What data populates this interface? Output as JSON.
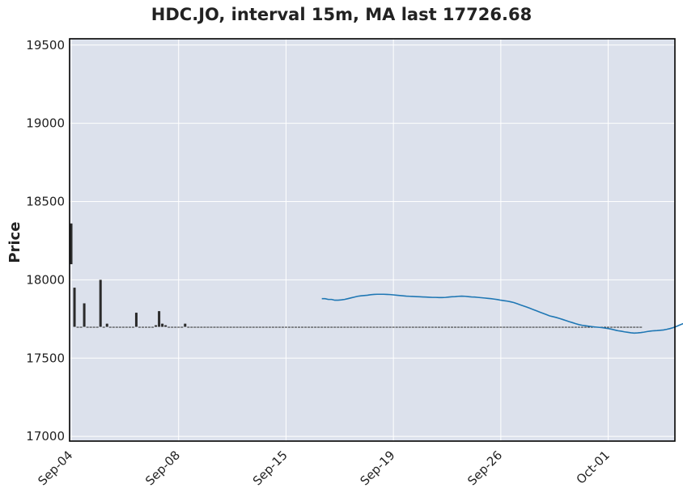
{
  "title": "HDC.JO, interval 15m, MA last 17726.68",
  "chart_data": {
    "type": "candlestick",
    "title": "HDC.JO, interval 15m, MA last 17726.68",
    "ylabel": "Price",
    "xlabel": "",
    "ylim": [
      16970,
      19540
    ],
    "yticks": [
      17000,
      17500,
      18000,
      18500,
      19000,
      19500
    ],
    "ytick_labels": [
      "17000",
      "17500",
      "18000",
      "18500",
      "19000",
      "19500"
    ],
    "xticks": [
      {
        "label": "Sep-04",
        "index": 0
      },
      {
        "label": "Sep-08",
        "index": 33
      },
      {
        "label": "Sep-15",
        "index": 66
      },
      {
        "label": "Sep-19",
        "index": 99
      },
      {
        "label": "Sep-26",
        "index": 132
      },
      {
        "label": "Oct-01",
        "index": 165
      }
    ],
    "bar_count": 186,
    "grid": true,
    "colors": {
      "candle": "#2b2b2b",
      "ma_line": "#1f77b4",
      "axes_bg": "#dce1ec",
      "grid": "#ffffff"
    },
    "candles": [
      [
        18360,
        18360,
        18100,
        18100
      ],
      [
        17950,
        17950,
        17700,
        17700
      ],
      [
        17700,
        17700,
        17700,
        17700
      ],
      [
        17700,
        17700,
        17700,
        17700
      ],
      [
        17850,
        17850,
        17700,
        17700
      ],
      [
        17700,
        17700,
        17700,
        17700
      ],
      [
        17700,
        17700,
        17700,
        17700
      ],
      [
        17700,
        17700,
        17700,
        17700
      ],
      [
        17700,
        17700,
        17700,
        17700
      ],
      [
        18000,
        18000,
        17700,
        17700
      ],
      [
        17700,
        17700,
        17700,
        17700
      ],
      [
        17720,
        17720,
        17700,
        17700
      ],
      [
        17700,
        17700,
        17700,
        17700
      ],
      [
        17700,
        17700,
        17700,
        17700
      ],
      [
        17700,
        17700,
        17700,
        17700
      ],
      [
        17700,
        17700,
        17700,
        17700
      ],
      [
        17700,
        17700,
        17700,
        17700
      ],
      [
        17700,
        17700,
        17700,
        17700
      ],
      [
        17700,
        17700,
        17700,
        17700
      ],
      [
        17700,
        17700,
        17700,
        17700
      ],
      [
        17790,
        17790,
        17700,
        17700
      ],
      [
        17700,
        17700,
        17700,
        17700
      ],
      [
        17700,
        17700,
        17700,
        17700
      ],
      [
        17700,
        17700,
        17700,
        17700
      ],
      [
        17700,
        17700,
        17700,
        17700
      ],
      [
        17700,
        17700,
        17700,
        17700
      ],
      [
        17710,
        17710,
        17700,
        17700
      ],
      [
        17800,
        17800,
        17700,
        17700
      ],
      [
        17720,
        17720,
        17700,
        17700
      ],
      [
        17710,
        17710,
        17700,
        17700
      ],
      [
        17700,
        17700,
        17700,
        17700
      ],
      [
        17700,
        17700,
        17700,
        17700
      ],
      [
        17700,
        17700,
        17700,
        17700
      ],
      [
        17700,
        17700,
        17700,
        17700
      ],
      [
        17700,
        17700,
        17700,
        17700
      ],
      [
        17720,
        17720,
        17700,
        17700
      ],
      [
        17700,
        17700,
        17700,
        17700
      ],
      [
        17700,
        17700,
        17700,
        17700
      ],
      [
        17700,
        17700,
        17700,
        17700
      ],
      [
        17700,
        17700,
        17700,
        17700
      ],
      [
        17700,
        17700,
        17700,
        17700
      ],
      [
        17700,
        17700,
        17700,
        17700
      ],
      [
        17700,
        17700,
        17700,
        17700
      ],
      [
        17700,
        17700,
        17700,
        17700
      ],
      [
        17700,
        17700,
        17700,
        17700
      ],
      [
        17700,
        17700,
        17700,
        17700
      ],
      [
        17700,
        17700,
        17700,
        17700
      ],
      [
        17700,
        17700,
        17700,
        17700
      ],
      [
        17700,
        17700,
        17700,
        17700
      ],
      [
        17700,
        17700,
        17700,
        17700
      ],
      [
        17700,
        17700,
        17700,
        17700
      ],
      [
        17700,
        17700,
        17700,
        17700
      ],
      [
        17700,
        17700,
        17700,
        17700
      ],
      [
        17700,
        17700,
        17700,
        17700
      ],
      [
        17700,
        17700,
        17700,
        17700
      ],
      [
        17700,
        17700,
        17700,
        17700
      ],
      [
        17700,
        17700,
        17700,
        17700
      ],
      [
        17700,
        17700,
        17700,
        17700
      ],
      [
        17700,
        17700,
        17700,
        17700
      ],
      [
        17700,
        17700,
        17700,
        17700
      ],
      [
        17700,
        17700,
        17700,
        17700
      ],
      [
        17700,
        17700,
        17700,
        17700
      ],
      [
        17700,
        17700,
        17700,
        17700
      ],
      [
        17700,
        17700,
        17700,
        17700
      ],
      [
        17700,
        17700,
        17700,
        17700
      ],
      [
        17700,
        17700,
        17700,
        17700
      ],
      [
        17700,
        17700,
        17700,
        17700
      ],
      [
        17700,
        17700,
        17700,
        17700
      ],
      [
        17700,
        17700,
        17700,
        17700
      ],
      [
        17700,
        17700,
        17700,
        17700
      ],
      [
        17700,
        17700,
        17700,
        17700
      ],
      [
        17700,
        17700,
        17700,
        17700
      ],
      [
        17700,
        17700,
        17700,
        17700
      ],
      [
        17700,
        17700,
        17700,
        17700
      ],
      [
        17700,
        17700,
        17700,
        17700
      ],
      [
        17700,
        17700,
        17700,
        17700
      ],
      [
        17700,
        17700,
        17700,
        17700
      ],
      [
        17700,
        17700,
        17700,
        17700
      ],
      [
        17700,
        17700,
        17700,
        17700
      ],
      [
        17700,
        17700,
        17700,
        17700
      ],
      [
        17700,
        17700,
        17700,
        17700
      ],
      [
        17700,
        17700,
        17700,
        17700
      ],
      [
        17700,
        17700,
        17700,
        17700
      ],
      [
        17700,
        17700,
        17700,
        17700
      ],
      [
        17700,
        17700,
        17700,
        17700
      ],
      [
        17700,
        17700,
        17700,
        17700
      ],
      [
        17700,
        17700,
        17700,
        17700
      ],
      [
        17700,
        17700,
        17700,
        17700
      ],
      [
        17700,
        17700,
        17700,
        17700
      ],
      [
        17700,
        17700,
        17700,
        17700
      ],
      [
        17700,
        17700,
        17700,
        17700
      ],
      [
        17700,
        17700,
        17700,
        17700
      ],
      [
        17700,
        17700,
        17700,
        17700
      ],
      [
        17700,
        17700,
        17700,
        17700
      ],
      [
        17700,
        17700,
        17700,
        17700
      ],
      [
        17700,
        17700,
        17700,
        17700
      ],
      [
        17700,
        17700,
        17700,
        17700
      ],
      [
        17700,
        17700,
        17700,
        17700
      ],
      [
        17700,
        17700,
        17700,
        17700
      ],
      [
        17700,
        17700,
        17700,
        17700
      ],
      [
        17700,
        17700,
        17700,
        17700
      ],
      [
        17700,
        17700,
        17700,
        17700
      ],
      [
        17700,
        17700,
        17700,
        17700
      ],
      [
        17700,
        17700,
        17700,
        17700
      ],
      [
        17700,
        17700,
        17700,
        17700
      ],
      [
        17700,
        17700,
        17700,
        17700
      ],
      [
        17700,
        17700,
        17700,
        17700
      ],
      [
        17700,
        17700,
        17700,
        17700
      ],
      [
        17700,
        17700,
        17700,
        17700
      ],
      [
        17700,
        17700,
        17700,
        17700
      ],
      [
        17700,
        17700,
        17700,
        17700
      ],
      [
        17700,
        17700,
        17700,
        17700
      ],
      [
        17700,
        17700,
        17700,
        17700
      ],
      [
        17700,
        17700,
        17700,
        17700
      ],
      [
        17700,
        17700,
        17700,
        17700
      ],
      [
        17700,
        17700,
        17700,
        17700
      ],
      [
        17700,
        17700,
        17700,
        17700
      ],
      [
        17700,
        17700,
        17700,
        17700
      ],
      [
        17700,
        17700,
        17700,
        17700
      ],
      [
        17700,
        17700,
        17700,
        17700
      ],
      [
        17700,
        17700,
        17700,
        17700
      ],
      [
        17700,
        17700,
        17700,
        17700
      ],
      [
        17700,
        17700,
        17700,
        17700
      ],
      [
        17700,
        17700,
        17700,
        17700
      ],
      [
        17700,
        17700,
        17700,
        17700
      ],
      [
        17700,
        17700,
        17700,
        17700
      ],
      [
        17700,
        17700,
        17700,
        17700
      ],
      [
        17700,
        17700,
        17700,
        17700
      ],
      [
        17700,
        17700,
        17700,
        17700
      ],
      [
        17700,
        17700,
        17700,
        17700
      ],
      [
        17700,
        17700,
        17700,
        17700
      ],
      [
        17700,
        17700,
        17700,
        17700
      ],
      [
        17700,
        17700,
        17700,
        17700
      ],
      [
        17700,
        17700,
        17700,
        17700
      ],
      [
        17700,
        17700,
        17700,
        17700
      ],
      [
        17700,
        17700,
        17700,
        17700
      ],
      [
        17700,
        17700,
        17700,
        17700
      ],
      [
        17700,
        17700,
        17700,
        17700
      ],
      [
        17700,
        17700,
        17700,
        17700
      ],
      [
        17700,
        17700,
        17700,
        17700
      ],
      [
        17700,
        17700,
        17700,
        17700
      ],
      [
        17700,
        17700,
        17700,
        17700
      ],
      [
        17700,
        17700,
        17700,
        17700
      ],
      [
        17700,
        17700,
        17700,
        17700
      ],
      [
        17700,
        17700,
        17700,
        17700
      ],
      [
        17700,
        17700,
        17700,
        17700
      ],
      [
        17700,
        17700,
        17700,
        17700
      ],
      [
        17700,
        17700,
        17700,
        17700
      ],
      [
        17700,
        17700,
        17700,
        17700
      ],
      [
        17700,
        17700,
        17700,
        17700
      ],
      [
        17700,
        17700,
        17700,
        17700
      ],
      [
        17700,
        17700,
        17700,
        17700
      ],
      [
        17700,
        17700,
        17700,
        17700
      ],
      [
        17700,
        17700,
        17700,
        17700
      ],
      [
        17700,
        17700,
        17700,
        17700
      ],
      [
        17700,
        17700,
        17700,
        17700
      ],
      [
        17700,
        17700,
        17700,
        17700
      ],
      [
        17700,
        17700,
        17700,
        17700
      ],
      [
        17700,
        17700,
        17700,
        17700
      ],
      [
        17700,
        17700,
        17700,
        17700
      ],
      [
        17700,
        17700,
        17700,
        17700
      ],
      [
        17700,
        17700,
        17700,
        17700
      ],
      [
        17700,
        17700,
        17700,
        17700
      ],
      [
        17700,
        17700,
        17700,
        17700
      ],
      [
        17700,
        17700,
        17700,
        17700
      ],
      [
        17700,
        17700,
        17700,
        17700
      ],
      [
        17700,
        17700,
        17700,
        17700
      ],
      [
        17700,
        17700,
        17700,
        17700
      ],
      [
        17700,
        17700,
        17700,
        17700
      ],
      [
        17700,
        17700,
        17700,
        17700
      ],
      [
        17700,
        17700,
        17700,
        17700
      ],
      [
        17700,
        17700,
        17700,
        17700
      ],
      [
        17700,
        17700,
        17700,
        17700
      ],
      [
        17700,
        17700,
        17700,
        17700
      ],
      [
        17700,
        17700,
        17700,
        17700
      ],
      [
        17700,
        17700,
        17700,
        17700
      ]
    ],
    "ma_start_index": 77,
    "ma": [
      17880,
      17880,
      17875,
      17875,
      17870,
      17870,
      17872,
      17875,
      17880,
      17885,
      17890,
      17895,
      17898,
      17900,
      17902,
      17905,
      17907,
      17908,
      17908,
      17908,
      17907,
      17906,
      17904,
      17902,
      17900,
      17898,
      17896,
      17895,
      17894,
      17893,
      17892,
      17891,
      17890,
      17889,
      17888,
      17888,
      17887,
      17887,
      17888,
      17890,
      17892,
      17893,
      17895,
      17896,
      17895,
      17893,
      17891,
      17890,
      17888,
      17886,
      17884,
      17882,
      17880,
      17877,
      17874,
      17870,
      17867,
      17864,
      17860,
      17855,
      17848,
      17840,
      17833,
      17826,
      17818,
      17810,
      17802,
      17794,
      17786,
      17778,
      17770,
      17765,
      17760,
      17754,
      17747,
      17740,
      17733,
      17727,
      17720,
      17714,
      17710,
      17707,
      17704,
      17701,
      17699,
      17697,
      17695,
      17692,
      17689,
      17685,
      17680,
      17675,
      17672,
      17668,
      17665,
      17662,
      17660,
      17661,
      17663,
      17666,
      17670,
      17673,
      17675,
      17676,
      17678,
      17680,
      17684,
      17689,
      17695,
      17703,
      17712,
      17720,
      17726.68
    ]
  }
}
